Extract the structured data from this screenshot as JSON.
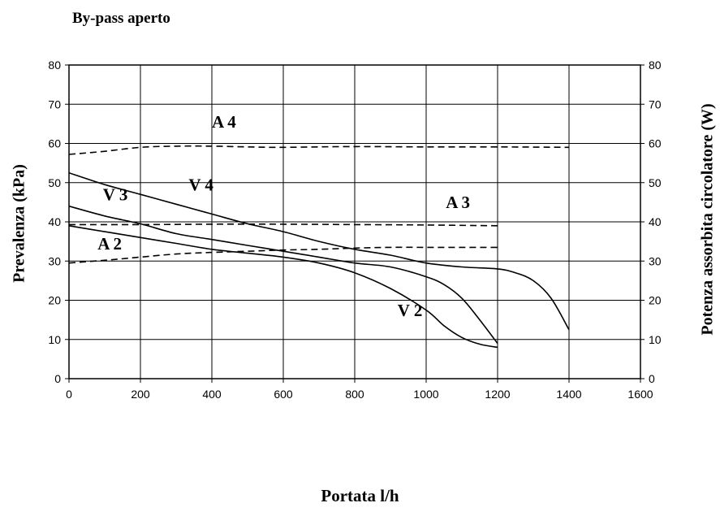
{
  "chart_data": {
    "type": "line",
    "title": "By-pass aperto",
    "xlabel": "Portata l/h",
    "ylabel": "Prevalenza (kPa)",
    "ylabel_right": "Potenza assorbita circolatore (W)",
    "xlim": [
      0,
      1600
    ],
    "ylim": [
      0,
      80
    ],
    "ylim_right": [
      0,
      80
    ],
    "x_ticks": [
      "0",
      "200",
      "400",
      "600",
      "800",
      "1000",
      "1200",
      "1400",
      "1600"
    ],
    "y_ticks": [
      "0",
      "10",
      "20",
      "30",
      "40",
      "50",
      "60",
      "70",
      "80"
    ],
    "y_ticks_right": [
      "0",
      "10",
      "20",
      "30",
      "40",
      "50",
      "60",
      "70",
      "80"
    ],
    "grid": true,
    "series": [
      {
        "name": "V 2",
        "axis": "left",
        "style": "solid",
        "points": [
          [
            0,
            39
          ],
          [
            100,
            37.5
          ],
          [
            200,
            36
          ],
          [
            300,
            34.5
          ],
          [
            400,
            33
          ],
          [
            500,
            32
          ],
          [
            600,
            31
          ],
          [
            700,
            29.5
          ],
          [
            800,
            27
          ],
          [
            900,
            23
          ],
          [
            1000,
            17.5
          ],
          [
            1050,
            13.5
          ],
          [
            1100,
            10.5
          ],
          [
            1150,
            8.8
          ],
          [
            1200,
            8
          ]
        ]
      },
      {
        "name": "V 3",
        "axis": "left",
        "style": "solid",
        "points": [
          [
            0,
            44
          ],
          [
            100,
            41.5
          ],
          [
            200,
            39.5
          ],
          [
            300,
            37
          ],
          [
            400,
            35.5
          ],
          [
            500,
            34
          ],
          [
            600,
            32.5
          ],
          [
            700,
            31
          ],
          [
            800,
            29.5
          ],
          [
            900,
            28.5
          ],
          [
            1000,
            26
          ],
          [
            1050,
            24
          ],
          [
            1100,
            20.5
          ],
          [
            1150,
            15
          ],
          [
            1200,
            9
          ]
        ]
      },
      {
        "name": "V 4",
        "axis": "left",
        "style": "solid",
        "points": [
          [
            0,
            52.5
          ],
          [
            100,
            49.5
          ],
          [
            200,
            47
          ],
          [
            300,
            44.5
          ],
          [
            400,
            42
          ],
          [
            500,
            39.5
          ],
          [
            600,
            37.5
          ],
          [
            700,
            35
          ],
          [
            800,
            33
          ],
          [
            900,
            31.5
          ],
          [
            1000,
            29.5
          ],
          [
            1100,
            28.5
          ],
          [
            1200,
            28
          ],
          [
            1250,
            27
          ],
          [
            1300,
            25
          ],
          [
            1350,
            20.5
          ],
          [
            1400,
            12.5
          ]
        ]
      },
      {
        "name": "A 2",
        "axis": "right",
        "style": "dashed",
        "points": [
          [
            0,
            29.5
          ],
          [
            100,
            30.2
          ],
          [
            200,
            31
          ],
          [
            300,
            31.8
          ],
          [
            400,
            32.2
          ],
          [
            500,
            32.5
          ],
          [
            600,
            32.8
          ],
          [
            700,
            33
          ],
          [
            800,
            33.3
          ],
          [
            900,
            33.5
          ],
          [
            1000,
            33.5
          ],
          [
            1100,
            33.5
          ],
          [
            1200,
            33.5
          ]
        ]
      },
      {
        "name": "A 3",
        "axis": "right",
        "style": "dashed",
        "points": [
          [
            0,
            39.3
          ],
          [
            200,
            39.3
          ],
          [
            400,
            39.4
          ],
          [
            600,
            39.4
          ],
          [
            800,
            39.3
          ],
          [
            1000,
            39.2
          ],
          [
            1200,
            39
          ]
        ]
      },
      {
        "name": "A 4",
        "axis": "right",
        "style": "dashed",
        "points": [
          [
            0,
            57.2
          ],
          [
            100,
            58
          ],
          [
            200,
            59
          ],
          [
            300,
            59.3
          ],
          [
            400,
            59.3
          ],
          [
            500,
            59.1
          ],
          [
            600,
            59
          ],
          [
            800,
            59.2
          ],
          [
            1000,
            59.1
          ],
          [
            1200,
            59.1
          ],
          [
            1400,
            59
          ]
        ]
      }
    ],
    "annotations": [
      {
        "text": "A 4",
        "x": 400,
        "y": 64
      },
      {
        "text": "V 3",
        "x": 95,
        "y": 45.5
      },
      {
        "text": "V 4",
        "x": 335,
        "y": 48
      },
      {
        "text": "A 3",
        "x": 1055,
        "y": 43.5
      },
      {
        "text": "A 2",
        "x": 80,
        "y": 33
      },
      {
        "text": "V 2",
        "x": 920,
        "y": 16
      }
    ]
  }
}
